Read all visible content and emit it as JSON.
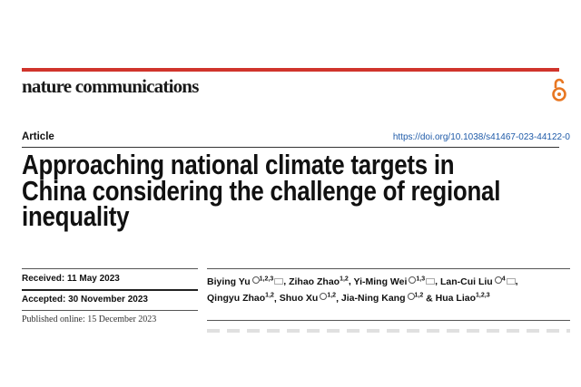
{
  "journal": {
    "name": "nature communications",
    "accent_color": "#d0342c",
    "open_access_icon": "open-access-icon",
    "open_access_color": "#e87722"
  },
  "header": {
    "article_type": "Article",
    "doi": "https://doi.org/10.1038/s41467-023-44122-0"
  },
  "title_lines": [
    "Approaching national climate targets in",
    "China considering the challenge of regional",
    "inequality"
  ],
  "dates": {
    "received": "Received: 11 May 2023",
    "accepted": "Accepted: 30 November 2023",
    "published": "Published online: 15 December 2023"
  },
  "authors": [
    {
      "name": "Biying Yu",
      "aff": "1,2,3",
      "orcid": true,
      "email": true
    },
    {
      "name": "Zihao Zhao",
      "aff": "1,2",
      "orcid": false,
      "email": false
    },
    {
      "name": "Yi-Ming Wei",
      "aff": "1,3",
      "orcid": true,
      "email": true
    },
    {
      "name": "Lan-Cui Liu",
      "aff": "4",
      "orcid": true,
      "email": true
    },
    {
      "name": "Qingyu Zhao",
      "aff": "1,2",
      "orcid": false,
      "email": false
    },
    {
      "name": "Shuo Xu",
      "aff": "1,2",
      "orcid": true,
      "email": false
    },
    {
      "name": "Jia-Ning Kang",
      "aff": "1,2",
      "orcid": true,
      "email": false
    },
    {
      "name": "Hua Liao",
      "aff": "1,2,3",
      "orcid": false,
      "email": false
    }
  ],
  "author_separators": [
    ", ",
    ", ",
    ", ",
    ",",
    ", ",
    ", ",
    " & ",
    ""
  ]
}
